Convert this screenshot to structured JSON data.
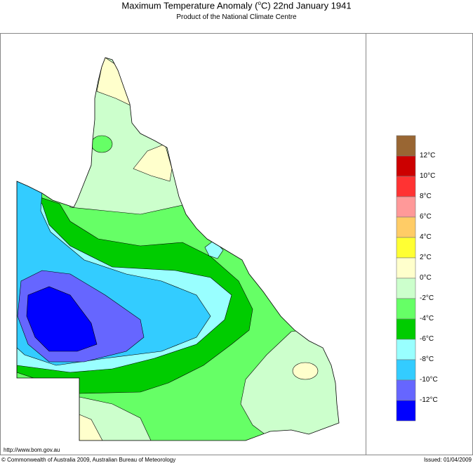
{
  "header": {
    "title_main": "Maximum Temperature Anomaly (",
    "title_sup": "o",
    "title_rest": "C)  22nd January 1941",
    "subtitle": "Product of the National Climate Centre"
  },
  "footer": {
    "url": "http://www.bom.gov.au",
    "copyright": "© Commonwealth of Australia 2009, Australian Bureau of Meteorology",
    "issued": "Issued: 01/04/2009"
  },
  "legend": {
    "colors": [
      "#996633",
      "#cc0000",
      "#ff3333",
      "#ff9999",
      "#ffcc66",
      "#ffff33",
      "#ffffcc",
      "#ccffcc",
      "#66ff66",
      "#00cc00",
      "#99ffff",
      "#33ccff",
      "#6666ff",
      "#0000ff"
    ],
    "labels": [
      "12°C",
      "10°C",
      "8°C",
      "6°C",
      "4°C",
      "2°C",
      "0°C",
      "-2°C",
      "-4°C",
      "-6°C",
      "-8°C",
      "-10°C",
      "-12°C"
    ]
  },
  "map": {
    "region": "Queensland",
    "variable": "Maximum temperature anomaly",
    "units": "°C"
  }
}
